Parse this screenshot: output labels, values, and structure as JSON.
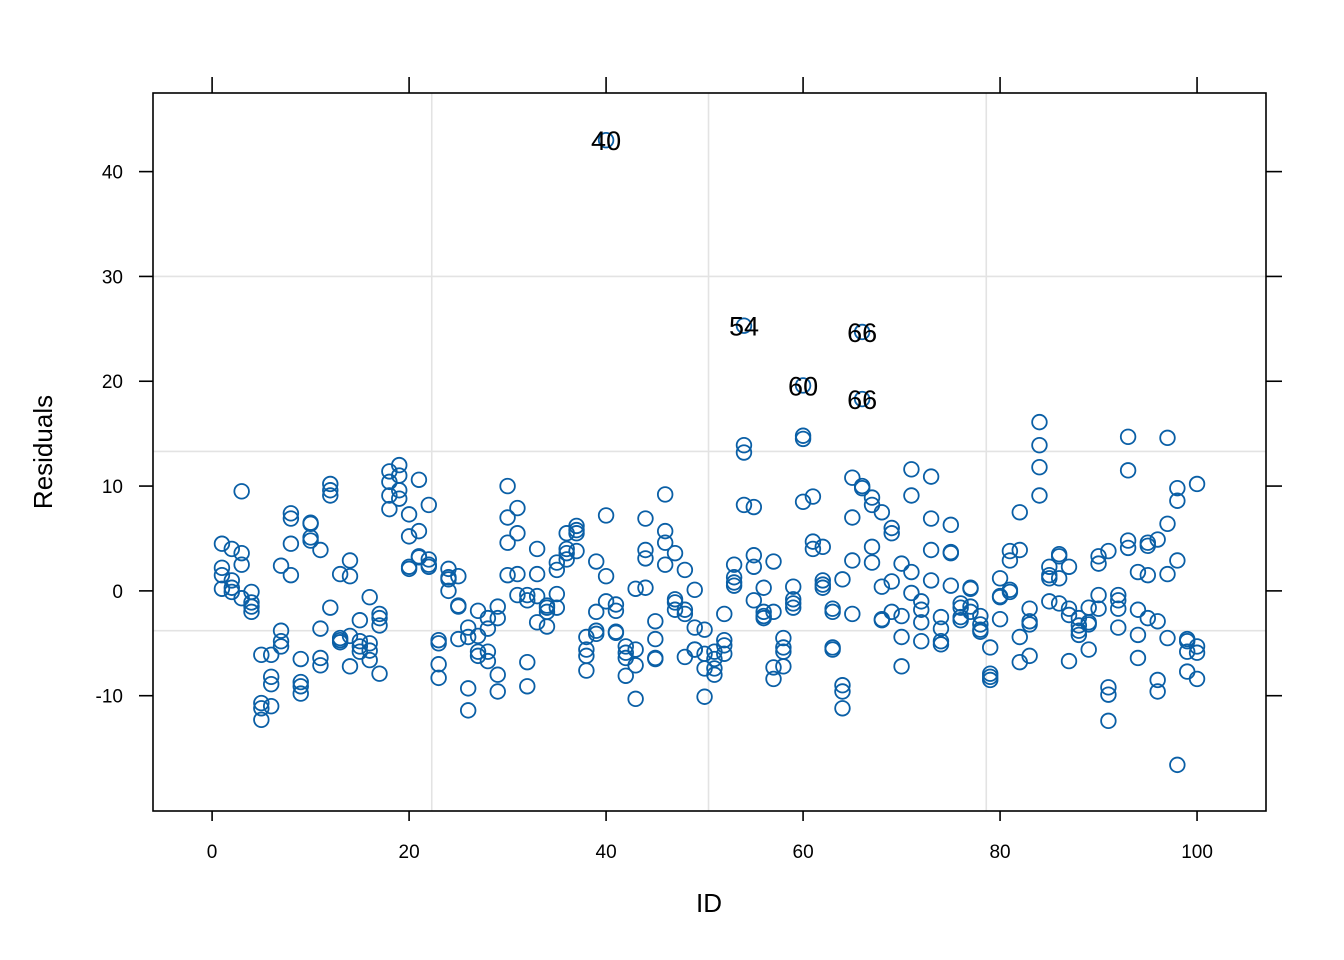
{
  "chart_data": {
    "type": "scatter",
    "xlabel": "ID",
    "ylabel": "Residuals",
    "xlim": [
      -6,
      107
    ],
    "ylim": [
      -21,
      47.5
    ],
    "x_ticks": [
      0,
      20,
      40,
      60,
      80,
      100
    ],
    "y_ticks": [
      -10,
      0,
      10,
      20,
      30,
      40
    ],
    "x_tick_labels": [
      "0",
      "20",
      "40",
      "60",
      "80",
      "100"
    ],
    "y_tick_labels": [
      "-10",
      "0",
      "10",
      "20",
      "30",
      "40"
    ],
    "grid": {
      "x": [
        22.3,
        50.4,
        78.6
      ],
      "y": [
        -3.8,
        13.3,
        30
      ]
    },
    "marker_color": "#0a5fa6",
    "labeled_points": [
      {
        "label": "40",
        "x": 40,
        "y": 43
      },
      {
        "label": "54",
        "x": 54,
        "y": 25.3
      },
      {
        "label": "66",
        "x": 66,
        "y": 24.7
      },
      {
        "label": "60",
        "x": 60,
        "y": 19.6
      },
      {
        "label": "66",
        "x": 66,
        "y": 18.3
      }
    ],
    "points": [
      [
        1,
        4.5
      ],
      [
        1,
        2.2
      ],
      [
        1,
        1.5
      ],
      [
        1,
        0.2
      ],
      [
        2,
        4
      ],
      [
        2,
        1
      ],
      [
        2,
        0.3
      ],
      [
        2,
        -0.1
      ],
      [
        3,
        9.5
      ],
      [
        3,
        3.6
      ],
      [
        3,
        2.5
      ],
      [
        3,
        -0.7
      ],
      [
        4,
        -0.1
      ],
      [
        4,
        -1.1
      ],
      [
        4,
        -1.5
      ],
      [
        4,
        -2
      ],
      [
        5,
        -6.1
      ],
      [
        5,
        -10.7
      ],
      [
        5,
        -11.2
      ],
      [
        5,
        -12.3
      ],
      [
        6,
        -6.1
      ],
      [
        6,
        -8.2
      ],
      [
        6,
        -8.9
      ],
      [
        6,
        -11
      ],
      [
        7,
        2.4
      ],
      [
        7,
        -3.8
      ],
      [
        7,
        -4.8
      ],
      [
        7,
        -5.3
      ],
      [
        8,
        7.4
      ],
      [
        8,
        6.9
      ],
      [
        8,
        4.5
      ],
      [
        8,
        1.5
      ],
      [
        9,
        -6.5
      ],
      [
        9,
        -8.7
      ],
      [
        9,
        -9.1
      ],
      [
        9,
        -9.8
      ],
      [
        10,
        6.5
      ],
      [
        10,
        6.4
      ],
      [
        10,
        5.1
      ],
      [
        10,
        4.8
      ],
      [
        11,
        3.9
      ],
      [
        11,
        -3.6
      ],
      [
        11,
        -6.4
      ],
      [
        11,
        -7.1
      ],
      [
        12,
        10.2
      ],
      [
        12,
        9.6
      ],
      [
        12,
        9.1
      ],
      [
        12,
        -1.6
      ],
      [
        13,
        1.6
      ],
      [
        13,
        -4.5
      ],
      [
        13,
        -4.7
      ],
      [
        13,
        -4.9
      ],
      [
        14,
        2.9
      ],
      [
        14,
        1.4
      ],
      [
        14,
        -4.3
      ],
      [
        14,
        -7.2
      ],
      [
        15,
        -2.8
      ],
      [
        15,
        -4.8
      ],
      [
        15,
        -5.3
      ],
      [
        15,
        -5.8
      ],
      [
        16,
        -0.6
      ],
      [
        16,
        -5
      ],
      [
        16,
        -5.7
      ],
      [
        16,
        -6.6
      ],
      [
        17,
        -2.2
      ],
      [
        17,
        -2.6
      ],
      [
        17,
        -3.3
      ],
      [
        17,
        -7.9
      ],
      [
        18,
        11.4
      ],
      [
        18,
        10.4
      ],
      [
        18,
        9.1
      ],
      [
        18,
        7.8
      ],
      [
        19,
        12
      ],
      [
        19,
        11
      ],
      [
        19,
        9.6
      ],
      [
        19,
        8.8
      ],
      [
        20,
        7.3
      ],
      [
        20,
        5.2
      ],
      [
        20,
        2.3
      ],
      [
        20,
        2.1
      ],
      [
        21,
        10.6
      ],
      [
        21,
        5.7
      ],
      [
        21,
        3.3
      ],
      [
        21,
        3.2
      ],
      [
        22,
        8.2
      ],
      [
        22,
        3
      ],
      [
        22,
        2.5
      ],
      [
        22,
        2.3
      ],
      [
        23,
        -4.7
      ],
      [
        23,
        -5
      ],
      [
        23,
        -7
      ],
      [
        23,
        -8.3
      ],
      [
        24,
        2.1
      ],
      [
        24,
        1.3
      ],
      [
        24,
        1.1
      ],
      [
        24,
        0
      ],
      [
        25,
        1.4
      ],
      [
        25,
        -1.4
      ],
      [
        25,
        -1.5
      ],
      [
        25,
        -4.6
      ],
      [
        26,
        -3.5
      ],
      [
        26,
        -4.4
      ],
      [
        26,
        -9.3
      ],
      [
        26,
        -11.4
      ],
      [
        27,
        -1.9
      ],
      [
        27,
        -4.3
      ],
      [
        27,
        -5.8
      ],
      [
        27,
        -6.2
      ],
      [
        28,
        -2.6
      ],
      [
        28,
        -3.6
      ],
      [
        28,
        -5.8
      ],
      [
        28,
        -6.7
      ],
      [
        29,
        -1.5
      ],
      [
        29,
        -2.6
      ],
      [
        29,
        -8
      ],
      [
        29,
        -9.6
      ],
      [
        30,
        10
      ],
      [
        30,
        7
      ],
      [
        30,
        4.6
      ],
      [
        30,
        1.5
      ],
      [
        31,
        7.9
      ],
      [
        31,
        5.5
      ],
      [
        31,
        1.6
      ],
      [
        31,
        -0.4
      ],
      [
        32,
        -0.4
      ],
      [
        32,
        -0.9
      ],
      [
        32,
        -6.8
      ],
      [
        32,
        -9.1
      ],
      [
        33,
        4
      ],
      [
        33,
        1.6
      ],
      [
        33,
        -0.5
      ],
      [
        33,
        -3
      ],
      [
        34,
        -1.4
      ],
      [
        34,
        -1.6
      ],
      [
        34,
        -2
      ],
      [
        34,
        -3.4
      ],
      [
        35,
        2.7
      ],
      [
        35,
        2
      ],
      [
        35,
        -0.3
      ],
      [
        35,
        -1.6
      ],
      [
        36,
        5.5
      ],
      [
        36,
        4
      ],
      [
        36,
        3.6
      ],
      [
        36,
        3
      ],
      [
        37,
        6.2
      ],
      [
        37,
        5.8
      ],
      [
        37,
        5.5
      ],
      [
        37,
        3.8
      ],
      [
        38,
        -4.4
      ],
      [
        38,
        -5.6
      ],
      [
        38,
        -6.2
      ],
      [
        38,
        -7.6
      ],
      [
        39,
        2.8
      ],
      [
        39,
        -2
      ],
      [
        39,
        -3.8
      ],
      [
        39,
        -4.1
      ],
      [
        40,
        7.2
      ],
      [
        40,
        1.4
      ],
      [
        40,
        -1
      ],
      [
        41,
        -1.3
      ],
      [
        41,
        -1.9
      ],
      [
        41,
        -3.9
      ],
      [
        41,
        -4
      ],
      [
        42,
        -5.3
      ],
      [
        42,
        -5.9
      ],
      [
        42,
        -6.4
      ],
      [
        42,
        -8.1
      ],
      [
        43,
        0.2
      ],
      [
        43,
        -5.6
      ],
      [
        43,
        -7.1
      ],
      [
        43,
        -10.3
      ],
      [
        44,
        6.9
      ],
      [
        44,
        3.9
      ],
      [
        44,
        3.1
      ],
      [
        44,
        0.3
      ],
      [
        45,
        -2.9
      ],
      [
        45,
        -4.6
      ],
      [
        45,
        -6.4
      ],
      [
        45,
        -6.5
      ],
      [
        46,
        9.2
      ],
      [
        46,
        5.7
      ],
      [
        46,
        4.6
      ],
      [
        46,
        2.5
      ],
      [
        47,
        3.6
      ],
      [
        47,
        -0.8
      ],
      [
        47,
        -1.1
      ],
      [
        47,
        -1.8
      ],
      [
        48,
        2
      ],
      [
        48,
        -1.8
      ],
      [
        48,
        -2.2
      ],
      [
        48,
        -6.3
      ],
      [
        49,
        0.1
      ],
      [
        49,
        -3.5
      ],
      [
        49,
        -5.6
      ],
      [
        49,
        -5.6
      ],
      [
        50,
        -3.7
      ],
      [
        50,
        -6
      ],
      [
        50,
        -7.4
      ],
      [
        50,
        -10.1
      ],
      [
        51,
        -5.8
      ],
      [
        51,
        -6.5
      ],
      [
        51,
        -7.4
      ],
      [
        51,
        -8
      ],
      [
        52,
        -2.2
      ],
      [
        52,
        -4.7
      ],
      [
        52,
        -5.2
      ],
      [
        52,
        -6
      ],
      [
        53,
        2.5
      ],
      [
        53,
        1.3
      ],
      [
        53,
        0.8
      ],
      [
        53,
        0.5
      ],
      [
        54,
        13.9
      ],
      [
        54,
        13.2
      ],
      [
        54,
        8.2
      ],
      [
        55,
        8
      ],
      [
        55,
        3.4
      ],
      [
        55,
        2.3
      ],
      [
        55,
        -0.9
      ],
      [
        56,
        0.3
      ],
      [
        56,
        -2
      ],
      [
        56,
        -2.4
      ],
      [
        56,
        -2.6
      ],
      [
        57,
        2.8
      ],
      [
        57,
        -2
      ],
      [
        57,
        -7.3
      ],
      [
        57,
        -8.4
      ],
      [
        58,
        -4.5
      ],
      [
        58,
        -5.4
      ],
      [
        58,
        -5.8
      ],
      [
        58,
        -7.2
      ],
      [
        59,
        0.4
      ],
      [
        59,
        -0.8
      ],
      [
        59,
        -1.2
      ],
      [
        59,
        -1.6
      ],
      [
        60,
        14.8
      ],
      [
        60,
        14.5
      ],
      [
        60,
        8.5
      ],
      [
        61,
        9
      ],
      [
        61,
        4.7
      ],
      [
        61,
        4
      ],
      [
        62,
        4.2
      ],
      [
        62,
        1
      ],
      [
        62,
        0.6
      ],
      [
        62,
        0.3
      ],
      [
        63,
        -1.7
      ],
      [
        63,
        -2
      ],
      [
        63,
        -5.4
      ],
      [
        63,
        -5.6
      ],
      [
        64,
        1.1
      ],
      [
        64,
        -9
      ],
      [
        64,
        -9.6
      ],
      [
        64,
        -11.2
      ],
      [
        65,
        10.8
      ],
      [
        65,
        7
      ],
      [
        65,
        2.9
      ],
      [
        65,
        -2.2
      ],
      [
        66,
        10
      ],
      [
        66,
        9.8
      ],
      [
        67,
        8.9
      ],
      [
        67,
        8.2
      ],
      [
        67,
        4.2
      ],
      [
        67,
        2.7
      ],
      [
        68,
        7.5
      ],
      [
        68,
        0.4
      ],
      [
        68,
        -2.7
      ],
      [
        68,
        -2.8
      ],
      [
        69,
        6
      ],
      [
        69,
        5.5
      ],
      [
        69,
        0.9
      ],
      [
        69,
        -2
      ],
      [
        70,
        2.6
      ],
      [
        70,
        -2.4
      ],
      [
        70,
        -4.4
      ],
      [
        70,
        -7.2
      ],
      [
        71,
        11.6
      ],
      [
        71,
        9.1
      ],
      [
        71,
        1.8
      ],
      [
        71,
        -0.2
      ],
      [
        72,
        -1
      ],
      [
        72,
        -1.8
      ],
      [
        72,
        -3
      ],
      [
        72,
        -4.8
      ],
      [
        73,
        10.9
      ],
      [
        73,
        6.9
      ],
      [
        73,
        3.9
      ],
      [
        73,
        1
      ],
      [
        74,
        -2.5
      ],
      [
        74,
        -3.6
      ],
      [
        74,
        -4.8
      ],
      [
        74,
        -5.1
      ],
      [
        75,
        6.3
      ],
      [
        75,
        3.7
      ],
      [
        75,
        3.6
      ],
      [
        75,
        0.5
      ],
      [
        76,
        -1.2
      ],
      [
        76,
        -1.6
      ],
      [
        76,
        -2.5
      ],
      [
        76,
        -2.8
      ],
      [
        77,
        0.3
      ],
      [
        77,
        0.2
      ],
      [
        77,
        -1.5
      ],
      [
        77,
        -2
      ],
      [
        78,
        -2.4
      ],
      [
        78,
        -3.2
      ],
      [
        78,
        -3.7
      ],
      [
        78,
        -3.9
      ],
      [
        79,
        -5.4
      ],
      [
        79,
        -7.9
      ],
      [
        79,
        -8.2
      ],
      [
        79,
        -8.5
      ],
      [
        80,
        1.2
      ],
      [
        80,
        -0.5
      ],
      [
        80,
        -0.6
      ],
      [
        80,
        -2.7
      ],
      [
        81,
        3.8
      ],
      [
        81,
        2.9
      ],
      [
        81,
        0.1
      ],
      [
        81,
        -0.1
      ],
      [
        82,
        7.5
      ],
      [
        82,
        3.9
      ],
      [
        82,
        -4.4
      ],
      [
        82,
        -6.8
      ],
      [
        83,
        -1.7
      ],
      [
        83,
        -2.9
      ],
      [
        83,
        -3.2
      ],
      [
        83,
        -6.2
      ],
      [
        84,
        16.1
      ],
      [
        84,
        13.9
      ],
      [
        84,
        11.8
      ],
      [
        84,
        9.1
      ],
      [
        85,
        2.3
      ],
      [
        85,
        1.5
      ],
      [
        85,
        1.2
      ],
      [
        85,
        -1
      ],
      [
        86,
        3.5
      ],
      [
        86,
        3.3
      ],
      [
        86,
        1.2
      ],
      [
        86,
        -1.2
      ],
      [
        87,
        2.3
      ],
      [
        87,
        -1.7
      ],
      [
        87,
        -2.3
      ],
      [
        87,
        -6.7
      ],
      [
        88,
        -2.6
      ],
      [
        88,
        -3.3
      ],
      [
        88,
        -3.8
      ],
      [
        88,
        -4.2
      ],
      [
        89,
        -1.6
      ],
      [
        89,
        -3
      ],
      [
        89,
        -3.2
      ],
      [
        89,
        -5.6
      ],
      [
        90,
        3.3
      ],
      [
        90,
        2.6
      ],
      [
        90,
        -0.4
      ],
      [
        90,
        -1.7
      ],
      [
        91,
        3.8
      ],
      [
        91,
        -9.2
      ],
      [
        91,
        -9.9
      ],
      [
        91,
        -12.4
      ],
      [
        92,
        -0.4
      ],
      [
        92,
        -0.9
      ],
      [
        92,
        -1.7
      ],
      [
        92,
        -3.5
      ],
      [
        93,
        14.7
      ],
      [
        93,
        11.5
      ],
      [
        93,
        4.8
      ],
      [
        93,
        4.1
      ],
      [
        94,
        1.8
      ],
      [
        94,
        -1.8
      ],
      [
        94,
        -4.2
      ],
      [
        94,
        -6.4
      ],
      [
        95,
        4.6
      ],
      [
        95,
        4.3
      ],
      [
        95,
        1.5
      ],
      [
        95,
        -2.6
      ],
      [
        96,
        4.9
      ],
      [
        96,
        -2.9
      ],
      [
        96,
        -8.5
      ],
      [
        96,
        -9.6
      ],
      [
        97,
        14.6
      ],
      [
        97,
        6.4
      ],
      [
        97,
        1.6
      ],
      [
        97,
        -4.5
      ],
      [
        98,
        9.8
      ],
      [
        98,
        8.6
      ],
      [
        98,
        2.9
      ],
      [
        98,
        -16.6
      ],
      [
        99,
        -4.6
      ],
      [
        99,
        -4.8
      ],
      [
        99,
        -5.8
      ],
      [
        99,
        -7.7
      ],
      [
        100,
        10.2
      ],
      [
        100,
        -5.3
      ],
      [
        100,
        -5.9
      ],
      [
        100,
        -8.4
      ]
    ]
  }
}
